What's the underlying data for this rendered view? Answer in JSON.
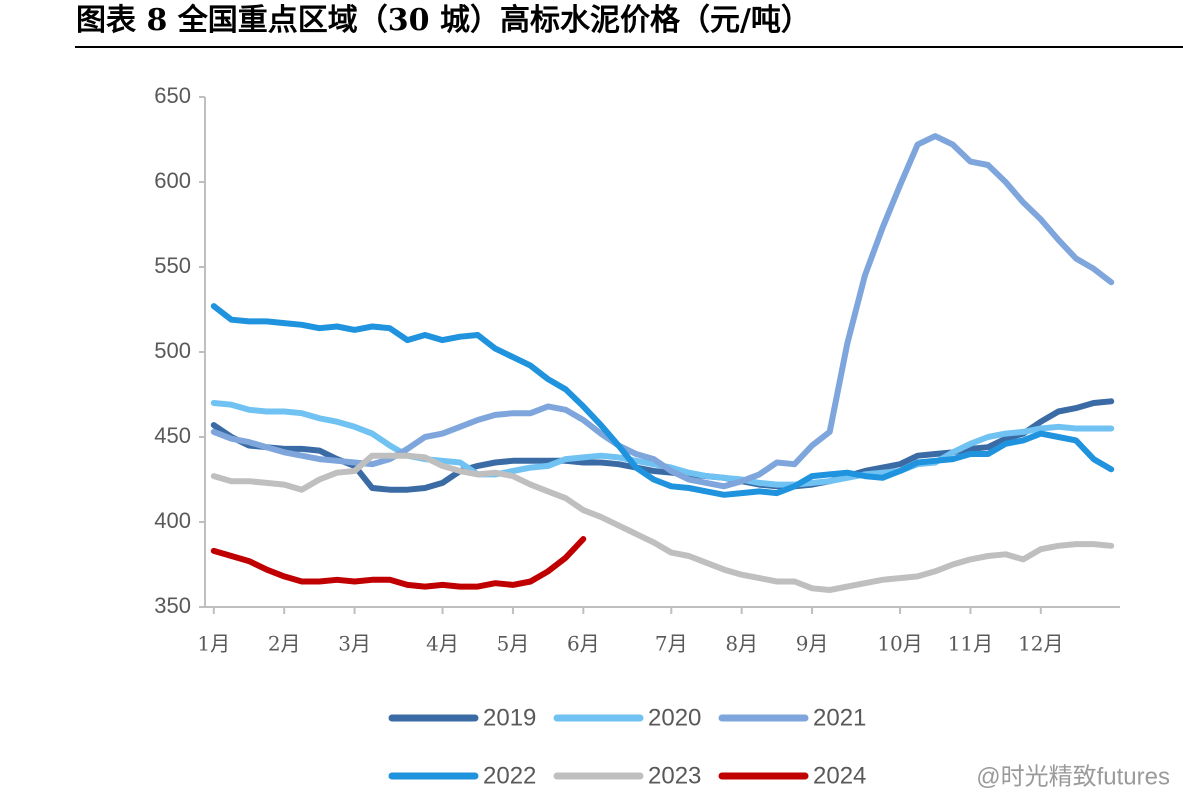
{
  "chart_data": {
    "type": "line",
    "title": "图表 8 全国重点区域（30 城）高标水泥价格（元/吨）",
    "watermark": "@时光精致futures",
    "categories": [
      "1月",
      null,
      null,
      null,
      "2月",
      null,
      null,
      null,
      "3月",
      null,
      null,
      null,
      null,
      "4月",
      null,
      null,
      null,
      "5月",
      null,
      null,
      null,
      "6月",
      null,
      null,
      null,
      null,
      "7月",
      null,
      null,
      null,
      "8月",
      null,
      null,
      null,
      "9月",
      null,
      null,
      null,
      null,
      "10月",
      null,
      null,
      null,
      "11月",
      null,
      null,
      null,
      "12月",
      null,
      null,
      null,
      null
    ],
    "ylim": [
      350,
      650
    ],
    "yticks": [
      350,
      400,
      450,
      500,
      550,
      600,
      650
    ],
    "grid": false,
    "legend": "bottom",
    "series": [
      {
        "name": "2019",
        "color": "#3b6ba5",
        "values": [
          457,
          450,
          445,
          444,
          443,
          443,
          442,
          437,
          433,
          420,
          419,
          419,
          420,
          423,
          430,
          433,
          435,
          436,
          436,
          436,
          436,
          435,
          435,
          434,
          432,
          430,
          429,
          428,
          427,
          426,
          424,
          422,
          421,
          421,
          422,
          424,
          427,
          430,
          432,
          434,
          439,
          440,
          441,
          443,
          444,
          449,
          452,
          459,
          465,
          467,
          470,
          471
        ]
      },
      {
        "name": "2020",
        "color": "#6fc2f2",
        "values": [
          470,
          469,
          466,
          465,
          465,
          464,
          461,
          459,
          456,
          452,
          445,
          439,
          437,
          436,
          435,
          428,
          428,
          430,
          432,
          433,
          437,
          438,
          439,
          438,
          436,
          434,
          432,
          429,
          427,
          426,
          425,
          423,
          422,
          422,
          423,
          424,
          426,
          428,
          429,
          430,
          434,
          435,
          441,
          446,
          450,
          452,
          453,
          455,
          456,
          455,
          455,
          455
        ]
      },
      {
        "name": "2021",
        "color": "#7ea6dc",
        "values": [
          453,
          449,
          447,
          444,
          441,
          439,
          437,
          436,
          435,
          434,
          437,
          443,
          450,
          452,
          456,
          460,
          463,
          464,
          464,
          468,
          466,
          460,
          452,
          445,
          440,
          437,
          430,
          425,
          423,
          421,
          424,
          428,
          435,
          434,
          445,
          453,
          505,
          545,
          573,
          598,
          622,
          627,
          622,
          612,
          610,
          600,
          588,
          578,
          566,
          555,
          549,
          541
        ]
      },
      {
        "name": "2022",
        "color": "#1f93de",
        "values": [
          527,
          519,
          518,
          518,
          517,
          516,
          514,
          515,
          513,
          515,
          514,
          507,
          510,
          507,
          509,
          510,
          502,
          497,
          492,
          484,
          478,
          468,
          457,
          445,
          432,
          425,
          421,
          420,
          418,
          416,
          417,
          418,
          417,
          421,
          427,
          428,
          429,
          427,
          426,
          430,
          435,
          436,
          437,
          440,
          440,
          446,
          448,
          452,
          450,
          448,
          437,
          431
        ]
      },
      {
        "name": "2023",
        "color": "#bfbfbf",
        "values": [
          427,
          424,
          424,
          423,
          422,
          419,
          425,
          429,
          430,
          439,
          439,
          439,
          438,
          433,
          430,
          428,
          429,
          427,
          422,
          418,
          414,
          407,
          403,
          398,
          393,
          388,
          382,
          380,
          376,
          372,
          369,
          367,
          365,
          365,
          361,
          360,
          362,
          364,
          366,
          367,
          368,
          371,
          375,
          378,
          380,
          381,
          378,
          384,
          386,
          387,
          387,
          386
        ]
      },
      {
        "name": "2024",
        "color": "#c00000",
        "values": [
          383,
          380,
          377,
          372,
          368,
          365,
          365,
          366,
          365,
          366,
          366,
          363,
          362,
          363,
          362,
          362,
          364,
          363,
          365,
          371,
          379,
          390,
          null,
          null,
          null,
          null,
          null,
          null,
          null,
          null,
          null,
          null,
          null,
          null,
          null,
          null,
          null,
          null,
          null,
          null,
          null,
          null,
          null,
          null,
          null,
          null,
          null,
          null,
          null,
          null,
          null,
          null
        ]
      }
    ]
  }
}
